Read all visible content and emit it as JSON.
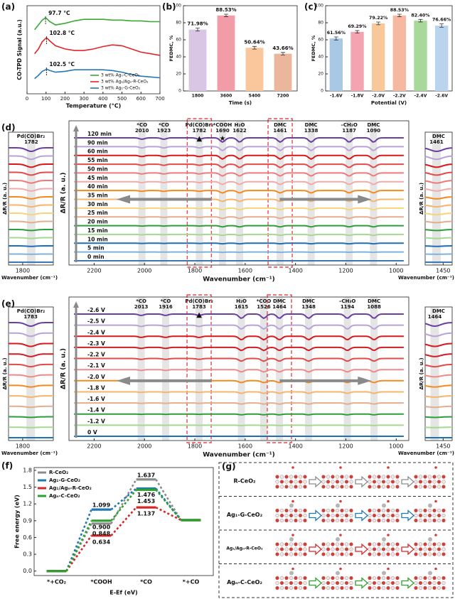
{
  "chart_data": [
    {
      "type": "line",
      "label": "(a)",
      "xlabel": "Temperature (°C)",
      "ylabel": "CO-TPD Signal (a.u.)",
      "xlim": [
        0,
        700
      ],
      "xticks": [
        0,
        100,
        200,
        300,
        400,
        500,
        600,
        700
      ],
      "ylim": [
        0,
        11
      ],
      "legend": "lower right",
      "x": [
        40,
        60,
        80,
        97.7,
        103,
        120,
        150,
        200,
        250,
        300,
        350,
        400,
        450,
        500,
        550,
        600,
        650,
        700
      ],
      "series": [
        {
          "name": "3 wt% Agₙ-C-CeO₂",
          "color": "#3aa935",
          "values": [
            8.0,
            8.6,
            9.2,
            9.5,
            9.4,
            9.0,
            8.6,
            8.8,
            9.1,
            9.3,
            9.3,
            9.3,
            9.2,
            9.2,
            9.1,
            9.1,
            9.0,
            9.0
          ]
        },
        {
          "name": "3 wt% Ag₁/Agₙ-R-CeO₂",
          "color": "#e0262b",
          "values": [
            5.0,
            5.6,
            6.5,
            6.9,
            7.0,
            6.6,
            6.0,
            5.6,
            5.4,
            5.4,
            5.6,
            5.9,
            6.1,
            6.0,
            5.6,
            5.2,
            5.0,
            4.8
          ]
        },
        {
          "name": "3 wt% Ag₁-G-CeO₂",
          "color": "#2577b8",
          "values": [
            1.9,
            2.3,
            2.8,
            3.0,
            3.1,
            2.9,
            2.7,
            2.8,
            3.0,
            3.0,
            3.0,
            3.0,
            2.9,
            2.7,
            2.4,
            2.2,
            2.1,
            2.0
          ]
        }
      ],
      "annotations": [
        {
          "label": "97.7 °C",
          "value": 97.7
        },
        {
          "label": "102.8 °C",
          "value": 102.8
        },
        {
          "label": "102.5 °C",
          "value": 102.5
        }
      ]
    },
    {
      "type": "bar",
      "label": "(b)",
      "xlabel": "Time (s)",
      "ylabel": "FEDMC, %",
      "ylim": [
        0,
        100
      ],
      "yticks": [
        0,
        20,
        40,
        60,
        80,
        100
      ],
      "categories": [
        "1800",
        "3600",
        "5400",
        "7200"
      ],
      "values": [
        71.98,
        88.53,
        50.64,
        43.66
      ],
      "errors": [
        1.8,
        1.5,
        1.6,
        1.5
      ],
      "value_labels": [
        "71.98%",
        "88.53%",
        "50.64%",
        "43.66%"
      ],
      "colors": [
        "#d9c6e4",
        "#f29ca8",
        "#f9c79b",
        "#ebb79c"
      ]
    },
    {
      "type": "bar",
      "label": "(c)",
      "xlabel": "Potential (V)",
      "ylabel": "FEDMC, %",
      "ylim": [
        0,
        100
      ],
      "yticks": [
        0,
        20,
        40,
        60,
        80,
        100
      ],
      "categories": [
        "-1.6V",
        "-1.8V",
        "-2.0V",
        "-2.2V",
        "-2.4V",
        "-2.6V"
      ],
      "values": [
        61.56,
        69.29,
        79.22,
        88.53,
        82.4,
        76.66
      ],
      "errors": [
        1.8,
        1.5,
        1.6,
        1.5,
        1.5,
        2.0
      ],
      "value_labels": [
        "61.56%",
        "69.29%",
        "79.22%",
        "88.53%",
        "82.40%",
        "76.66%"
      ],
      "colors": [
        "#a9c8e6",
        "#f4a3b0",
        "#f9c89a",
        "#f6b8a0",
        "#a8d99a",
        "#b9d4ec"
      ]
    },
    {
      "type": "spectra",
      "label": "(d)",
      "xlabel": "Wavenumber (cm⁻¹)",
      "ylabel": "ΔR/R (a. u.)",
      "xlim": [
        2300,
        950
      ],
      "xticks": [
        2200,
        2000,
        1800,
        1600,
        1400,
        1200,
        1000
      ],
      "series": [
        {
          "name": "120 min",
          "color": "#6b3fa0"
        },
        {
          "name": "90 min",
          "color": "#b8a2d8"
        },
        {
          "name": "60 min",
          "color": "#d7191c"
        },
        {
          "name": "55 min",
          "color": "#e34a4a"
        },
        {
          "name": "50 min",
          "color": "#ee7b7b"
        },
        {
          "name": "45 min",
          "color": "#f5a9a9"
        },
        {
          "name": "40 min",
          "color": "#f58a1f"
        },
        {
          "name": "35 min",
          "color": "#f7b46a"
        },
        {
          "name": "30 min",
          "color": "#f6d57a"
        },
        {
          "name": "25 min",
          "color": "#e4ad8e"
        },
        {
          "name": "20 min",
          "color": "#2e9e3a"
        },
        {
          "name": "15 min",
          "color": "#a6d98f"
        },
        {
          "name": "10 min",
          "color": "#1f6fb4"
        },
        {
          "name": "5 min",
          "color": "#7eb3dd"
        },
        {
          "name": "0 min",
          "color": "#3d78b5"
        }
      ],
      "annotations": [
        {
          "label": "*CO",
          "value": 2010
        },
        {
          "label": "*CO",
          "value": 1923
        },
        {
          "label": "Pd(CO)Br₂",
          "value": 1782
        },
        {
          "label": "*COOH",
          "value": 1690
        },
        {
          "label": "H₂O",
          "value": 1622
        },
        {
          "label": "DMC",
          "value": 1461
        },
        {
          "label": "DMC",
          "value": 1338
        },
        {
          "label": "–CH₃O",
          "value": 1187
        },
        {
          "label": "DMC",
          "value": 1090
        }
      ],
      "markers": [
        {
          "label": "▲",
          "value": 1782
        },
        {
          "label": "★",
          "value": 1690
        }
      ],
      "insets": [
        {
          "label": "Pd(CO)Br₂",
          "value": 1782,
          "xlim": [
            1830,
            1735
          ],
          "xticks": [
            1800
          ],
          "xlabel": "Wavenumber (cm⁻¹)",
          "ylabel": "ΔR/R (a. u.)"
        },
        {
          "label": "DMC",
          "value": 1461,
          "xlim": [
            1480,
            1435
          ],
          "xticks": [
            1450
          ],
          "xlabel": "Wavenumber (cm⁻¹)",
          "ylabel": "ΔR/R (a. u.)"
        }
      ]
    },
    {
      "type": "spectra",
      "label": "(e)",
      "xlabel": "Wavenumber (cm⁻¹)",
      "ylabel": "ΔR/R (a. u.)",
      "xlim": [
        2300,
        950
      ],
      "xticks": [
        2200,
        2000,
        1800,
        1600,
        1400,
        1200,
        1000
      ],
      "series": [
        {
          "name": "-2.6 V",
          "color": "#6b3fa0"
        },
        {
          "name": "-2.5 V",
          "color": "#b8a2d8"
        },
        {
          "name": "-2.4 V",
          "color": "#d7191c"
        },
        {
          "name": "-2.3 V",
          "color": "#cf1f24"
        },
        {
          "name": "-2.2 V",
          "color": "#e34a4a"
        },
        {
          "name": "-2.1 V",
          "color": "#f08a8a"
        },
        {
          "name": "-2.0 V",
          "color": "#f58a1f"
        },
        {
          "name": "-1.8 V",
          "color": "#f7b46a"
        },
        {
          "name": "-1.6 V",
          "color": "#e4ad8e"
        },
        {
          "name": "-1.4 V",
          "color": "#2e9e3a"
        },
        {
          "name": "-1.2 V",
          "color": "#a6d98f"
        },
        {
          "name": "0 V",
          "color": "#1f6fb4"
        }
      ],
      "annotations": [
        {
          "label": "*CO",
          "value": 2013
        },
        {
          "label": "*CO",
          "value": 1916
        },
        {
          "label": "Pd(CO)Br₂",
          "value": 1783
        },
        {
          "label": "H₂O",
          "value": 1615
        },
        {
          "label": "*COO",
          "value": 1526
        },
        {
          "label": "DMC",
          "value": 1464
        },
        {
          "label": "DMC",
          "value": 1348
        },
        {
          "label": "–CH₃O",
          "value": 1194
        },
        {
          "label": "DMC",
          "value": 1088
        }
      ],
      "markers": [
        {
          "label": "▲",
          "value": 1783
        }
      ],
      "insets": [
        {
          "label": "Pd(CO)Br₂",
          "value": 1783,
          "xlim": [
            1830,
            1735
          ],
          "xticks": [
            1800
          ],
          "xlabel": "Wavenumber (cm⁻¹)",
          "ylabel": "ΔR/R (a. u.)"
        },
        {
          "label": "DMC",
          "value": 1464,
          "xlim": [
            1480,
            1435
          ],
          "xticks": [
            1450
          ],
          "xlabel": "Wavenumber (cm⁻¹)",
          "ylabel": "ΔR/R (a. u.)"
        }
      ]
    },
    {
      "type": "energy",
      "label": "(f)",
      "xlabel": "E-Ef (eV)",
      "ylabel": "Free energy (eV)",
      "ylim": [
        -0.08,
        1.85
      ],
      "yticks": [
        {
          "value": 0,
          "label": "0.0"
        },
        0.3,
        0.6,
        0.9,
        1.2,
        1.5,
        1.8
      ],
      "legend": "upper left",
      "categories": [
        "*+CO₂",
        "*COOH",
        "*CO",
        "*+CO"
      ],
      "series": [
        {
          "name": "R-CeO₂",
          "color": "#8c8c8c",
          "values": [
            0,
            0.848,
            1.637,
            0.91
          ],
          "value_labels": [
            null,
            "0.848",
            "1.637",
            null
          ]
        },
        {
          "name": "Ag₁-G-CeO₂",
          "color": "#1f77b4",
          "values": [
            0,
            1.099,
            1.476,
            0.91
          ],
          "value_labels": [
            null,
            "1.099",
            "1.476",
            null
          ]
        },
        {
          "name": "Ag₁/Agₙ-R-CeO₂",
          "color": "#d62728",
          "values": [
            0,
            0.634,
            1.137,
            0.91
          ],
          "value_labels": [
            null,
            "0.634",
            "1.137",
            null
          ]
        },
        {
          "name": "Agₙ-C-CeO₂",
          "color": "#2ca02c",
          "values": [
            0,
            0.9,
            1.453,
            0.91
          ],
          "value_labels": [
            null,
            "0.900",
            "1.453",
            null
          ]
        }
      ]
    }
  ],
  "diagram": {
    "label": "(g)",
    "rows": [
      {
        "name": "R-CeO₂",
        "color": "#8c8c8c"
      },
      {
        "name": "Ag₁-G-CeO₂",
        "color": "#1f77b4"
      },
      {
        "name": "Ag₁/Agₙ-R-CeO₂",
        "color": "#d62728"
      },
      {
        "name": "Agₙ-C-CeO₂",
        "color": "#2ca02c"
      }
    ]
  }
}
